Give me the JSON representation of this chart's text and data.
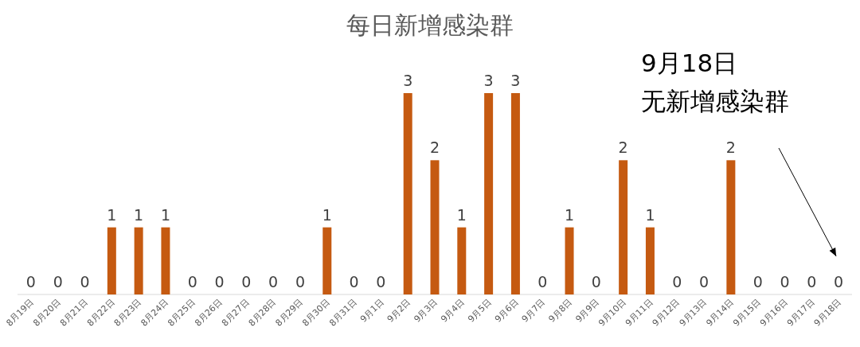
{
  "chart_data": {
    "type": "bar",
    "title": "每日新增感染群",
    "categories": [
      "8月19日",
      "8月20日",
      "8月21日",
      "8月22日",
      "8月23日",
      "8月24日",
      "8月25日",
      "8月26日",
      "8月27日",
      "8月28日",
      "8月29日",
      "8月30日",
      "8月31日",
      "9月1日",
      "9月2日",
      "9月3日",
      "9月4日",
      "9月5日",
      "9月6日",
      "9月7日",
      "9月8日",
      "9月9日",
      "9月10日",
      "9月11日",
      "9月12日",
      "9月13日",
      "9月14日",
      "9月15日",
      "9月16日",
      "9月17日",
      "9月18日"
    ],
    "values": [
      0,
      0,
      0,
      1,
      1,
      1,
      0,
      0,
      0,
      0,
      0,
      1,
      0,
      0,
      3,
      2,
      1,
      3,
      3,
      0,
      1,
      0,
      2,
      1,
      0,
      0,
      2,
      0,
      0,
      0,
      0
    ],
    "color": "#c55a11",
    "data_labels": true,
    "annotations": [
      "9月18日",
      "无新增感染群"
    ]
  }
}
